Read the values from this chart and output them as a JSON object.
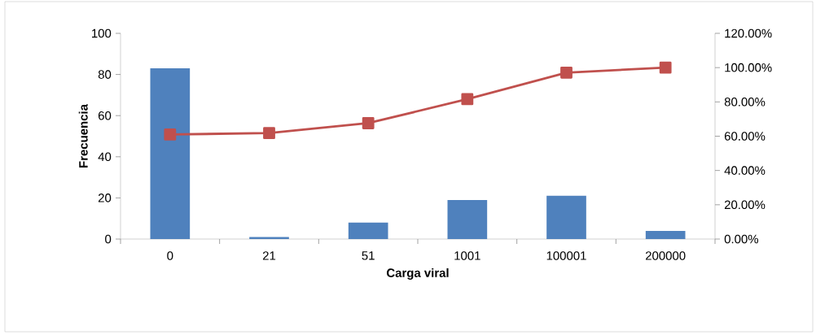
{
  "chart_data": {
    "type": "bar",
    "xlabel": "Carga viral",
    "ylabel": "Frecuencia",
    "categories": [
      "0",
      "21",
      "51",
      "1001",
      "100001",
      "200000"
    ],
    "series": [
      {
        "color": "#4f81bd",
        "values": [
          83,
          1,
          8,
          19,
          21,
          4
        ]
      },
      {
        "type": "line",
        "axis": "y2",
        "color": "#c0504d",
        "values": [
          61.0,
          61.8,
          67.6,
          81.6,
          97.1,
          100
        ]
      }
    ],
    "marker": "square",
    "ylim": [
      0,
      100
    ],
    "yticks": [
      0,
      20,
      40,
      60,
      80,
      100
    ],
    "y2lim": [
      0,
      120
    ],
    "y2ticks": [
      {
        "value": 0,
        "label": "0.00%"
      },
      {
        "value": 20,
        "label": "20.00%"
      },
      {
        "value": 40,
        "label": "40.00%"
      },
      {
        "value": 60,
        "label": "60.00%"
      },
      {
        "value": 80,
        "label": "80.00%"
      },
      {
        "value": 100,
        "label": "100.00%"
      },
      {
        "value": 120,
        "label": "120.00%"
      }
    ]
  }
}
